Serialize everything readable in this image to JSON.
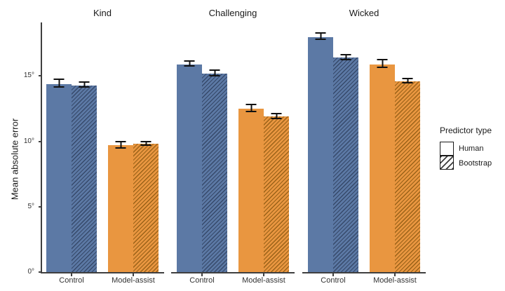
{
  "page": {
    "background": "#ffffff"
  },
  "chart_data": {
    "type": "bar",
    "title": "",
    "xlabel": "",
    "ylabel": "Mean absolute error",
    "ylim": [
      0,
      19.1
    ],
    "grid": false,
    "yticks": [
      {
        "value": 0,
        "label": "0°"
      },
      {
        "value": 5,
        "label": "5°"
      },
      {
        "value": 10,
        "label": "10°"
      },
      {
        "value": 15,
        "label": "15°"
      }
    ],
    "legend": {
      "title": "Predictor type",
      "position": "right",
      "items": [
        {
          "label": "Human",
          "pattern": "solid"
        },
        {
          "label": "Bootstrap",
          "pattern": "hatched"
        }
      ]
    },
    "colors": {
      "control_fill": "#5c79a5",
      "control_hatch_line": "#36496a",
      "model_assist_fill": "#e99640",
      "model_assist_hatch_line": "#9a6218",
      "axis": "#3f3f3f",
      "errorbar": "#111111",
      "text": "#1a1a1a"
    },
    "facets": [
      {
        "label": "Kind",
        "groups": [
          {
            "category": "Control",
            "color_key": "control",
            "bars": [
              {
                "series": "Human",
                "value": 14.4,
                "error": 0.3
              },
              {
                "series": "Bootstrap",
                "value": 14.3,
                "error": 0.2
              }
            ]
          },
          {
            "category": "Model-assist",
            "color_key": "model_assist",
            "bars": [
              {
                "series": "Human",
                "value": 9.7,
                "error": 0.25
              },
              {
                "series": "Bootstrap",
                "value": 9.8,
                "error": 0.15
              }
            ]
          }
        ]
      },
      {
        "label": "Challenging",
        "groups": [
          {
            "category": "Control",
            "color_key": "control",
            "bars": [
              {
                "series": "Human",
                "value": 15.9,
                "error": 0.2
              },
              {
                "series": "Bootstrap",
                "value": 15.2,
                "error": 0.2
              }
            ]
          },
          {
            "category": "Model-assist",
            "color_key": "model_assist",
            "bars": [
              {
                "series": "Human",
                "value": 12.5,
                "error": 0.25
              },
              {
                "series": "Bootstrap",
                "value": 11.9,
                "error": 0.2
              }
            ]
          }
        ]
      },
      {
        "label": "Wicked",
        "groups": [
          {
            "category": "Control",
            "color_key": "control",
            "bars": [
              {
                "series": "Human",
                "value": 18.0,
                "error": 0.25
              },
              {
                "series": "Bootstrap",
                "value": 16.4,
                "error": 0.2
              }
            ]
          },
          {
            "category": "Model-assist",
            "color_key": "model_assist",
            "bars": [
              {
                "series": "Human",
                "value": 15.9,
                "error": 0.3
              },
              {
                "series": "Bootstrap",
                "value": 14.6,
                "error": 0.15
              }
            ]
          }
        ]
      }
    ]
  }
}
